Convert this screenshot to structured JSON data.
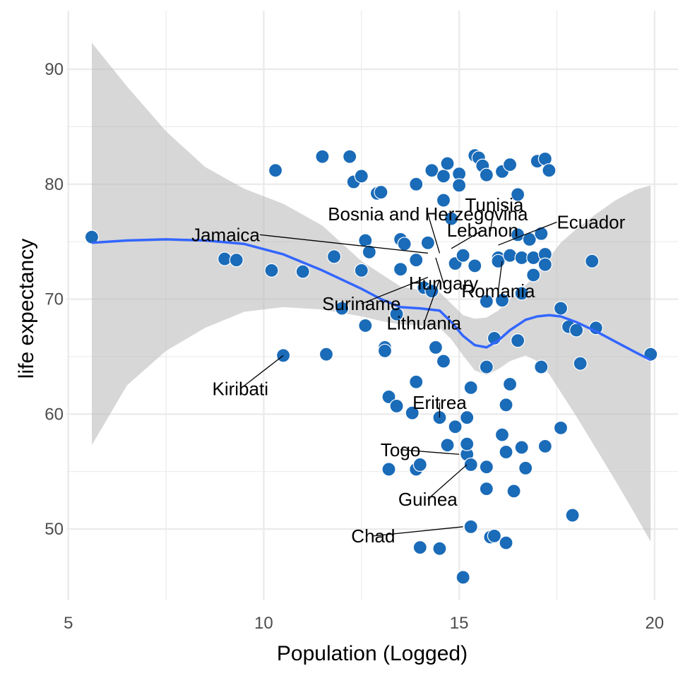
{
  "chart_data": {
    "type": "scatter",
    "title": "",
    "xlabel": "Population (Logged)",
    "ylabel": "life expectancy",
    "xlim": [
      4.95,
      20.6
    ],
    "ylim": [
      43.8,
      95.1
    ],
    "x_ticks": [
      5,
      10,
      15,
      20
    ],
    "y_ticks": [
      50,
      60,
      70,
      80,
      90
    ],
    "grid": true,
    "legend": "none",
    "colors": {
      "point_fill": "#1a6bb8",
      "point_stroke": "#ffffff",
      "smooth_line": "#3366ff",
      "ci_band": "#bdbdbd",
      "grid": "#ebebeb",
      "label_text": "#000000"
    },
    "points": [
      [
        5.6,
        75.4
      ],
      [
        9.0,
        73.5
      ],
      [
        9.3,
        73.4
      ],
      [
        10.2,
        72.5
      ],
      [
        10.3,
        81.2
      ],
      [
        10.5,
        65.1
      ],
      [
        11.0,
        72.4
      ],
      [
        11.5,
        82.4
      ],
      [
        11.6,
        65.2
      ],
      [
        11.8,
        73.7
      ],
      [
        12.0,
        69.2
      ],
      [
        12.2,
        82.4
      ],
      [
        12.3,
        80.2
      ],
      [
        12.5,
        80.7
      ],
      [
        12.5,
        72.5
      ],
      [
        12.6,
        75.1
      ],
      [
        12.6,
        67.7
      ],
      [
        12.7,
        74.1
      ],
      [
        12.9,
        79.2
      ],
      [
        13.0,
        79.3
      ],
      [
        13.1,
        65.8
      ],
      [
        13.1,
        65.5
      ],
      [
        13.2,
        61.5
      ],
      [
        13.2,
        55.2
      ],
      [
        13.4,
        60.7
      ],
      [
        13.4,
        68.7
      ],
      [
        13.5,
        75.2
      ],
      [
        13.5,
        72.6
      ],
      [
        13.6,
        74.8
      ],
      [
        13.8,
        60.1
      ],
      [
        13.9,
        80.0
      ],
      [
        13.9,
        73.4
      ],
      [
        13.9,
        62.8
      ],
      [
        13.9,
        55.2
      ],
      [
        14.0,
        55.6
      ],
      [
        14.0,
        48.4
      ],
      [
        14.1,
        71.0
      ],
      [
        14.2,
        74.9
      ],
      [
        14.3,
        70.7
      ],
      [
        14.3,
        81.2
      ],
      [
        14.4,
        65.8
      ],
      [
        14.5,
        59.7
      ],
      [
        14.5,
        48.3
      ],
      [
        14.6,
        80.7
      ],
      [
        14.6,
        78.6
      ],
      [
        14.6,
        64.6
      ],
      [
        14.7,
        81.8
      ],
      [
        14.7,
        57.3
      ],
      [
        14.8,
        77.0
      ],
      [
        14.9,
        73.1
      ],
      [
        14.9,
        58.9
      ],
      [
        15.0,
        80.9
      ],
      [
        15.0,
        79.9
      ],
      [
        15.1,
        73.8
      ],
      [
        15.1,
        45.8
      ],
      [
        15.2,
        59.7
      ],
      [
        15.2,
        56.5
      ],
      [
        15.2,
        57.4
      ],
      [
        15.3,
        55.6
      ],
      [
        15.3,
        50.2
      ],
      [
        15.3,
        62.3
      ],
      [
        15.4,
        72.9
      ],
      [
        15.4,
        82.5
      ],
      [
        15.5,
        82.3
      ],
      [
        15.6,
        81.6
      ],
      [
        15.7,
        80.8
      ],
      [
        15.7,
        69.8
      ],
      [
        15.7,
        64.1
      ],
      [
        15.7,
        55.4
      ],
      [
        15.7,
        53.5
      ],
      [
        15.8,
        49.3
      ],
      [
        15.9,
        49.4
      ],
      [
        15.9,
        66.6
      ],
      [
        16.0,
        73.6
      ],
      [
        16.0,
        73.3
      ],
      [
        16.1,
        81.1
      ],
      [
        16.1,
        69.9
      ],
      [
        16.1,
        58.2
      ],
      [
        16.2,
        60.8
      ],
      [
        16.2,
        56.7
      ],
      [
        16.2,
        48.8
      ],
      [
        16.3,
        81.7
      ],
      [
        16.3,
        73.8
      ],
      [
        16.3,
        62.6
      ],
      [
        16.4,
        53.3
      ],
      [
        16.5,
        66.4
      ],
      [
        16.5,
        75.6
      ],
      [
        16.5,
        79.1
      ],
      [
        16.6,
        70.5
      ],
      [
        16.6,
        73.6
      ],
      [
        16.6,
        57.1
      ],
      [
        16.7,
        55.3
      ],
      [
        16.8,
        75.2
      ],
      [
        16.9,
        73.6
      ],
      [
        16.9,
        72.1
      ],
      [
        17.0,
        82.0
      ],
      [
        17.2,
        82.2
      ],
      [
        17.1,
        75.7
      ],
      [
        17.1,
        64.1
      ],
      [
        17.2,
        73.9
      ],
      [
        17.2,
        73.0
      ],
      [
        17.2,
        57.2
      ],
      [
        17.3,
        81.2
      ],
      [
        17.6,
        69.2
      ],
      [
        17.6,
        58.8
      ],
      [
        17.8,
        67.6
      ],
      [
        17.9,
        51.2
      ],
      [
        18.0,
        67.3
      ],
      [
        18.1,
        64.4
      ],
      [
        18.4,
        73.3
      ],
      [
        18.5,
        67.5
      ],
      [
        19.9,
        65.2
      ]
    ],
    "labeled_points": [
      {
        "name": "Bosnia and Herzegovina",
        "x": 14.5,
        "y": 74.0,
        "lx": 14.2,
        "ly": 77.4,
        "anchor": "middle",
        "shade": "#000000"
      },
      {
        "name": "Tunisia",
        "x": 15.8,
        "y": 75.9,
        "lx": 15.9,
        "ly": 78.2,
        "anchor": "middle",
        "shade": "#000000"
      },
      {
        "name": "Lebanon",
        "x": 14.8,
        "y": 74.4,
        "lx": 15.6,
        "ly": 76.0,
        "anchor": "middle",
        "shade": "#000000"
      },
      {
        "name": "Jamaica",
        "x": 14.2,
        "y": 74.0,
        "lx": 9.9,
        "ly": 75.6,
        "anchor": "end",
        "shade": "#333333"
      },
      {
        "name": "Ecuador",
        "x": 16.0,
        "y": 74.7,
        "lx": 17.5,
        "ly": 76.7,
        "anchor": "start",
        "shade": "#000000"
      },
      {
        "name": "Hungary",
        "x": 14.4,
        "y": 73.6,
        "lx": 14.6,
        "ly": 71.4,
        "anchor": "middle",
        "shade": "#444444"
      },
      {
        "name": "Romania",
        "x": 16.1,
        "y": 73.3,
        "lx": 16.0,
        "ly": 70.7,
        "anchor": "middle",
        "shade": "#000000"
      },
      {
        "name": "Suriname",
        "x": 14.2,
        "y": 71.9,
        "lx": 12.5,
        "ly": 69.6,
        "anchor": "middle",
        "shade": "#555555"
      },
      {
        "name": "Lithuania",
        "x": 14.5,
        "y": 71.7,
        "lx": 14.1,
        "ly": 67.9,
        "anchor": "middle",
        "shade": "#666666"
      },
      {
        "name": "Kiribati",
        "x": 10.5,
        "y": 65.1,
        "lx": 9.4,
        "ly": 62.2,
        "anchor": "middle",
        "shade": "#000000"
      },
      {
        "name": "Eritrea",
        "x": 14.5,
        "y": 59.7,
        "lx": 14.5,
        "ly": 61.0,
        "anchor": "middle",
        "shade": "#000000"
      },
      {
        "name": "Togo",
        "x": 15.0,
        "y": 56.5,
        "lx": 13.5,
        "ly": 56.9,
        "anchor": "middle",
        "shade": "#000000"
      },
      {
        "name": "Guinea",
        "x": 15.2,
        "y": 55.6,
        "lx": 14.2,
        "ly": 52.6,
        "anchor": "middle",
        "shade": "#000000"
      },
      {
        "name": "Chad",
        "x": 15.1,
        "y": 50.2,
        "lx": 12.8,
        "ly": 49.4,
        "anchor": "middle",
        "shade": "#000000"
      }
    ],
    "smooth": {
      "x": [
        5.6,
        6.5,
        7.5,
        8.5,
        9.5,
        10.5,
        11.5,
        12.5,
        13.0,
        13.5,
        14.0,
        14.5,
        14.8,
        15.1,
        15.4,
        15.7,
        16.0,
        16.3,
        16.7,
        17.0,
        17.3,
        17.6,
        18.0,
        18.5,
        19.0,
        19.5,
        19.9
      ],
      "y": [
        74.9,
        75.1,
        75.2,
        75.1,
        74.8,
        73.9,
        72.5,
        70.9,
        70.0,
        69.3,
        69.2,
        69.0,
        68.0,
        66.8,
        66.0,
        65.8,
        66.4,
        67.3,
        68.2,
        68.5,
        68.6,
        68.5,
        68.0,
        67.2,
        66.3,
        65.4,
        64.7
      ],
      "lower": [
        57.3,
        62.5,
        65.5,
        67.5,
        68.9,
        69.3,
        69.1,
        68.5,
        68.1,
        67.8,
        67.7,
        67.5,
        66.5,
        65.1,
        63.8,
        63.4,
        63.9,
        64.6,
        65.1,
        64.6,
        63.5,
        61.9,
        59.8,
        57.0,
        54.2,
        51.3,
        48.9
      ],
      "upper": [
        92.3,
        88.5,
        84.6,
        81.5,
        79.6,
        78.3,
        76.4,
        73.3,
        72.2,
        71.1,
        70.8,
        70.6,
        69.6,
        68.6,
        68.3,
        68.4,
        69.0,
        70.0,
        71.2,
        72.3,
        73.6,
        74.9,
        76.1,
        77.4,
        78.6,
        79.5,
        79.9
      ]
    }
  }
}
